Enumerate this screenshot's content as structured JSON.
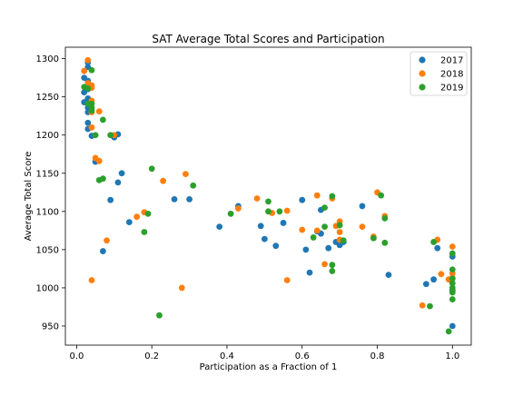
{
  "chart_data": {
    "type": "scatter",
    "title": "SAT Average Total Scores and Participation",
    "xlabel": "Participation as a Fraction of 1",
    "ylabel": "Average Total Score",
    "xlim": [
      -0.03,
      1.05
    ],
    "ylim": [
      925,
      1315
    ],
    "xticks": [
      0.0,
      0.2,
      0.4,
      0.6,
      0.8,
      1.0
    ],
    "xtick_labels": [
      "0.0",
      "0.2",
      "0.4",
      "0.6",
      "0.8",
      "1.0"
    ],
    "yticks": [
      950,
      1000,
      1050,
      1100,
      1150,
      1200,
      1250,
      1300
    ],
    "ytick_labels": [
      "950",
      "1000",
      "1050",
      "1100",
      "1150",
      "1200",
      "1250",
      "1300"
    ],
    "grid": false,
    "legend": "top-right",
    "series": [
      {
        "name": "2017",
        "color": "#1f77b4",
        "points": [
          [
            0.02,
            1275
          ],
          [
            0.03,
            1295
          ],
          [
            0.03,
            1289
          ],
          [
            0.03,
            1271
          ],
          [
            0.02,
            1256
          ],
          [
            0.03,
            1260
          ],
          [
            0.03,
            1248
          ],
          [
            0.02,
            1243
          ],
          [
            0.03,
            1236
          ],
          [
            0.03,
            1230
          ],
          [
            0.03,
            1216
          ],
          [
            0.03,
            1208
          ],
          [
            0.04,
            1199
          ],
          [
            0.05,
            1165
          ],
          [
            0.07,
            1048
          ],
          [
            0.09,
            1115
          ],
          [
            0.1,
            1197
          ],
          [
            0.11,
            1201
          ],
          [
            0.11,
            1138
          ],
          [
            0.12,
            1150
          ],
          [
            0.14,
            1086
          ],
          [
            0.26,
            1116
          ],
          [
            0.3,
            1116
          ],
          [
            0.38,
            1080
          ],
          [
            0.43,
            1107
          ],
          [
            0.49,
            1081
          ],
          [
            0.5,
            1064
          ],
          [
            0.53,
            1055
          ],
          [
            0.55,
            1085
          ],
          [
            0.6,
            1115
          ],
          [
            0.61,
            1050
          ],
          [
            0.62,
            1020
          ],
          [
            0.64,
            1074
          ],
          [
            0.65,
            1071
          ],
          [
            0.65,
            1102
          ],
          [
            0.67,
            1052
          ],
          [
            0.69,
            1060
          ],
          [
            0.7,
            1056
          ],
          [
            0.71,
            1060
          ],
          [
            0.76,
            1107
          ],
          [
            0.83,
            1017
          ],
          [
            0.93,
            1005
          ],
          [
            0.95,
            1011
          ],
          [
            0.96,
            1052
          ],
          [
            1.0,
            1041
          ],
          [
            1.0,
            996
          ],
          [
            1.0,
            950
          ]
        ]
      },
      {
        "name": "2018",
        "color": "#ff7f0e",
        "points": [
          [
            0.02,
            1284
          ],
          [
            0.03,
            1298
          ],
          [
            0.03,
            1268
          ],
          [
            0.04,
            1265
          ],
          [
            0.04,
            1262
          ],
          [
            0.04,
            1245
          ],
          [
            0.04,
            1230
          ],
          [
            0.04,
            1210
          ],
          [
            0.04,
            1010
          ],
          [
            0.05,
            1170
          ],
          [
            0.06,
            1231
          ],
          [
            0.06,
            1166
          ],
          [
            0.08,
            1062
          ],
          [
            0.1,
            1200
          ],
          [
            0.16,
            1093
          ],
          [
            0.18,
            1099
          ],
          [
            0.23,
            1140
          ],
          [
            0.28,
            1000
          ],
          [
            0.29,
            1149
          ],
          [
            0.43,
            1104
          ],
          [
            0.48,
            1117
          ],
          [
            0.52,
            1098
          ],
          [
            0.56,
            1101
          ],
          [
            0.56,
            1010
          ],
          [
            0.6,
            1076
          ],
          [
            0.64,
            1121
          ],
          [
            0.64,
            1075
          ],
          [
            0.66,
            1031
          ],
          [
            0.68,
            1117
          ],
          [
            0.69,
            1081
          ],
          [
            0.7,
            1087
          ],
          [
            0.7,
            1073
          ],
          [
            0.7,
            1063
          ],
          [
            0.76,
            1080
          ],
          [
            0.79,
            1067
          ],
          [
            0.8,
            1125
          ],
          [
            0.82,
            1094
          ],
          [
            0.92,
            977
          ],
          [
            0.96,
            1063
          ],
          [
            0.97,
            1018
          ],
          [
            0.99,
            1011
          ],
          [
            1.0,
            1054
          ],
          [
            1.0,
            1019
          ],
          [
            1.0,
            1013
          ]
        ]
      },
      {
        "name": "2019",
        "color": "#2ca02c",
        "points": [
          [
            0.02,
            1263
          ],
          [
            0.03,
            1261
          ],
          [
            0.04,
            1285
          ],
          [
            0.03,
            1241
          ],
          [
            0.04,
            1241
          ],
          [
            0.04,
            1236
          ],
          [
            0.04,
            1232
          ],
          [
            0.05,
            1200
          ],
          [
            0.06,
            1141
          ],
          [
            0.07,
            1220
          ],
          [
            0.07,
            1143
          ],
          [
            0.09,
            1200
          ],
          [
            0.18,
            1073
          ],
          [
            0.19,
            1097
          ],
          [
            0.2,
            1156
          ],
          [
            0.22,
            964
          ],
          [
            0.31,
            1134
          ],
          [
            0.41,
            1097
          ],
          [
            0.51,
            1100
          ],
          [
            0.51,
            1113
          ],
          [
            0.54,
            1100
          ],
          [
            0.63,
            1066
          ],
          [
            0.66,
            1105
          ],
          [
            0.66,
            1080
          ],
          [
            0.68,
            1120
          ],
          [
            0.68,
            1030
          ],
          [
            0.68,
            1022
          ],
          [
            0.7,
            1082
          ],
          [
            0.71,
            1062
          ],
          [
            0.79,
            1065
          ],
          [
            0.81,
            1121
          ],
          [
            0.82,
            1091
          ],
          [
            0.82,
            1059
          ],
          [
            0.94,
            976
          ],
          [
            0.95,
            1060
          ],
          [
            0.99,
            943
          ],
          [
            1.0,
            1045
          ],
          [
            1.0,
            1024
          ],
          [
            1.0,
            1012
          ],
          [
            1.0,
            1006
          ],
          [
            1.0,
            1000
          ],
          [
            1.0,
            997
          ],
          [
            1.0,
            994
          ],
          [
            1.0,
            985
          ]
        ]
      }
    ]
  }
}
